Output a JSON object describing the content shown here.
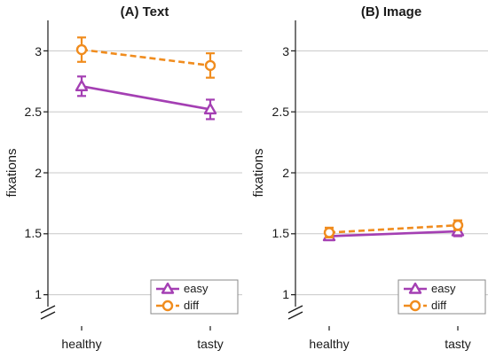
{
  "colors": {
    "easy": "#a43fb3",
    "diff": "#f08c1e",
    "grid": "#c8c8c8",
    "axis": "#1a1a1a"
  },
  "chart_data": [
    {
      "type": "line",
      "title": "(A) Text",
      "xlabel": "",
      "ylabel": "fixations",
      "categories": [
        "healthy",
        "tasty"
      ],
      "ylim": [
        0.83,
        3.25
      ],
      "yticks": [
        1,
        1.5,
        2,
        2.5,
        3
      ],
      "ytick_labels": [
        "1",
        "1.5",
        "2",
        "2.5",
        "3"
      ],
      "axis_break": true,
      "grid": "horizontal",
      "legend": "bottom-right",
      "series": [
        {
          "name": "easy",
          "key": "easy",
          "style": "solid",
          "marker": "triangle",
          "values": [
            2.71,
            2.52
          ],
          "error": [
            0.08,
            0.08
          ]
        },
        {
          "name": "diff",
          "key": "diff",
          "style": "dashed",
          "marker": "circle",
          "values": [
            3.01,
            2.88
          ],
          "error": [
            0.1,
            0.1
          ]
        }
      ]
    },
    {
      "type": "line",
      "title": "(B) Image",
      "xlabel": "",
      "ylabel": "fixations",
      "categories": [
        "healthy",
        "tasty"
      ],
      "ylim": [
        0.83,
        3.25
      ],
      "yticks": [
        1,
        1.5,
        2,
        2.5,
        3
      ],
      "ytick_labels": [
        "1",
        "1.5",
        "2",
        "2.5",
        "3"
      ],
      "axis_break": true,
      "grid": "horizontal",
      "legend": "bottom-right",
      "series": [
        {
          "name": "easy",
          "key": "easy",
          "style": "solid",
          "marker": "triangle",
          "values": [
            1.48,
            1.52
          ],
          "error": [
            0.03,
            0.04
          ]
        },
        {
          "name": "diff",
          "key": "diff",
          "style": "dashed",
          "marker": "circle",
          "values": [
            1.51,
            1.57
          ],
          "error": [
            0.04,
            0.04
          ]
        }
      ]
    }
  ]
}
